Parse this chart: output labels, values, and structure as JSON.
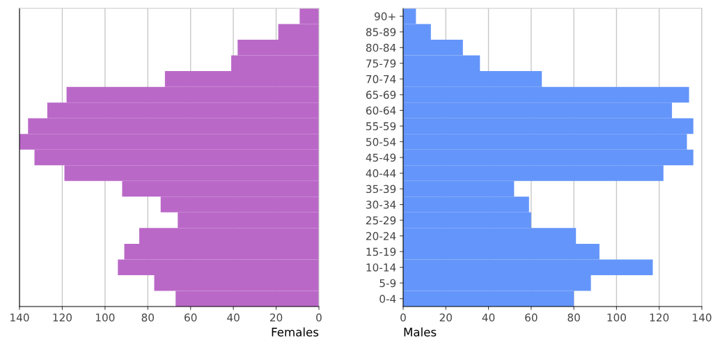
{
  "chart_data": [
    {
      "type": "bar",
      "orientation": "horizontal",
      "xlabel": "Females",
      "categories": [
        null,
        null,
        null,
        null,
        null,
        null,
        null,
        null,
        null,
        null,
        null,
        null,
        null,
        null,
        null,
        null,
        null,
        null,
        null
      ],
      "series": [
        {
          "color": "#ba68c8",
          "values": [
            9,
            19,
            38,
            41,
            72,
            118,
            127,
            136,
            140,
            133,
            119,
            92,
            74,
            66,
            84,
            91,
            94,
            77,
            67
          ]
        }
      ],
      "xlim": [
        140,
        0
      ],
      "xticks": [
        140,
        120,
        100,
        80,
        60,
        40,
        20,
        0
      ],
      "grid": "x",
      "tick_labels": "x"
    },
    {
      "type": "bar",
      "orientation": "horizontal",
      "xlabel": "Males",
      "categories": [
        "90+",
        "85-89",
        "80-84",
        "75-79",
        "70-74",
        "65-69",
        "60-64",
        "55-59",
        "50-54",
        "45-49",
        "40-44",
        "35-39",
        "30-34",
        "25-29",
        "20-24",
        "15-19",
        "10-14",
        "5-9",
        "0-4"
      ],
      "series": [
        {
          "color": "#6495fa",
          "values": [
            6,
            13,
            28,
            36,
            65,
            134,
            126,
            136,
            133,
            136,
            122,
            52,
            59,
            60,
            81,
            92,
            117,
            88,
            80
          ]
        }
      ],
      "xlim": [
        0,
        140
      ],
      "xticks": [
        0,
        20,
        40,
        60,
        80,
        100,
        120,
        140
      ],
      "grid": "x"
    }
  ]
}
